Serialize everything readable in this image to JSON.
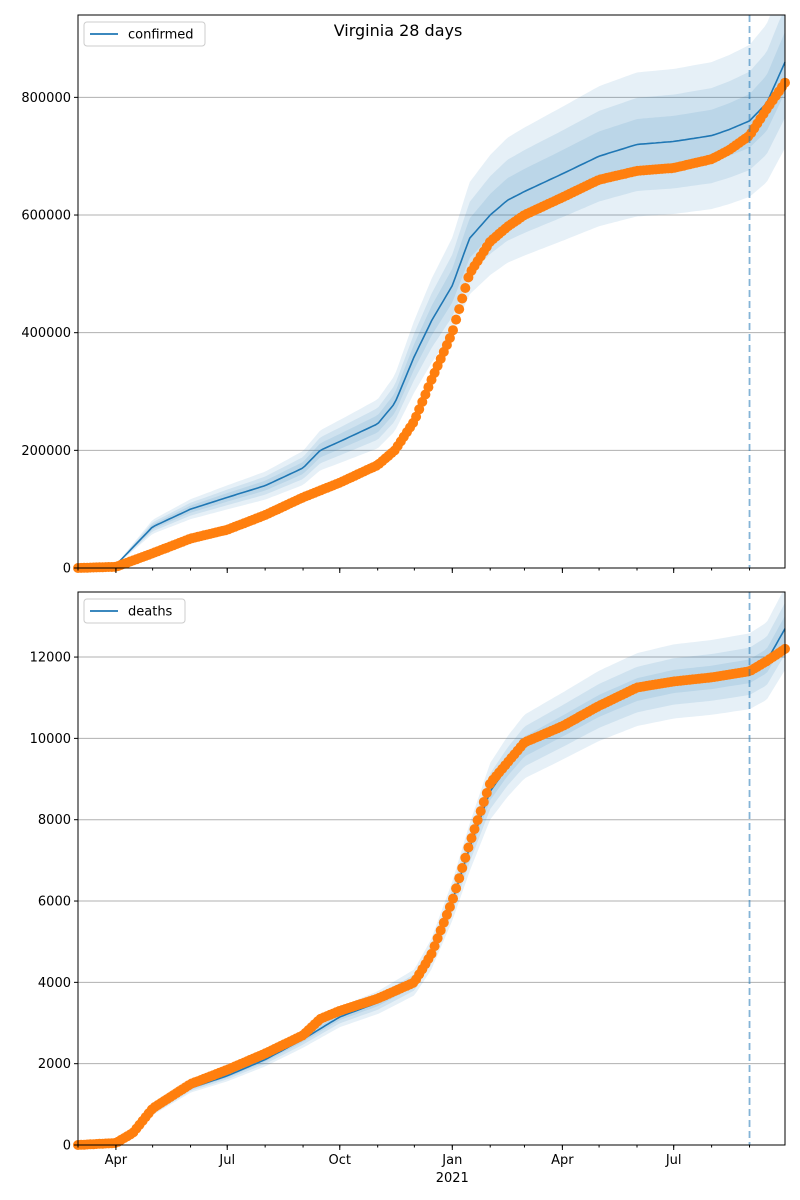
{
  "chart_data": {
    "title": "Virginia 28 days",
    "date_range": [
      "2020-03-01",
      "2021-09-30"
    ],
    "forecast_start": "2021-09-01",
    "year_label": "2021",
    "x_ticks": [
      {
        "date": "2020-04-01",
        "label": "Apr"
      },
      {
        "date": "2020-07-01",
        "label": "Jul"
      },
      {
        "date": "2020-10-01",
        "label": "Oct"
      },
      {
        "date": "2021-01-01",
        "label": "Jan"
      },
      {
        "date": "2021-04-01",
        "label": "Apr"
      },
      {
        "date": "2021-07-01",
        "label": "Jul"
      }
    ],
    "colors": {
      "model": "#1f77b4",
      "observed": "#ff7f0e",
      "band": "#1f77b4",
      "grid": "#b0b0b0",
      "forecast_line": "#1f77b4"
    },
    "panels": [
      {
        "type": "line",
        "series_name": "confirmed",
        "legend_position": "upper-left",
        "grid": true,
        "ylim": [
          0,
          940000
        ],
        "y_ticks": [
          {
            "value": 0,
            "label": "0"
          },
          {
            "value": 200000,
            "label": "200000"
          },
          {
            "value": 400000,
            "label": "400000"
          },
          {
            "value": 600000,
            "label": "600000"
          },
          {
            "value": 800000,
            "label": "800000"
          }
        ],
        "model": {
          "x": [
            "2020-03-01",
            "2020-04-01",
            "2020-05-01",
            "2020-06-01",
            "2020-07-01",
            "2020-08-01",
            "2020-09-01",
            "2020-09-15",
            "2020-10-01",
            "2020-11-01",
            "2020-11-15",
            "2020-12-01",
            "2020-12-15",
            "2021-01-01",
            "2021-01-15",
            "2021-02-01",
            "2021-02-15",
            "2021-03-01",
            "2021-04-01",
            "2021-05-01",
            "2021-06-01",
            "2021-07-01",
            "2021-08-01",
            "2021-08-15",
            "2021-09-01",
            "2021-09-15",
            "2021-09-30"
          ],
          "y": [
            0,
            5000,
            70000,
            100000,
            120000,
            140000,
            170000,
            200000,
            215000,
            245000,
            280000,
            360000,
            420000,
            480000,
            560000,
            600000,
            625000,
            640000,
            670000,
            700000,
            720000,
            725000,
            735000,
            745000,
            760000,
            790000,
            860000
          ]
        },
        "bands": [
          {
            "lo_factor": 0.83,
            "hi_factor": 1.17
          },
          {
            "lo_factor": 0.89,
            "hi_factor": 1.11
          },
          {
            "lo_factor": 0.94,
            "hi_factor": 1.06
          }
        ],
        "observed": {
          "x": [
            "2020-03-01",
            "2020-04-01",
            "2020-05-01",
            "2020-06-01",
            "2020-07-01",
            "2020-08-01",
            "2020-09-01",
            "2020-10-01",
            "2020-11-01",
            "2020-11-15",
            "2020-12-01",
            "2020-12-15",
            "2021-01-01",
            "2021-01-15",
            "2021-02-01",
            "2021-02-15",
            "2021-03-01",
            "2021-04-01",
            "2021-05-01",
            "2021-06-01",
            "2021-07-01",
            "2021-08-01",
            "2021-08-15",
            "2021-09-01",
            "2021-09-15",
            "2021-09-30"
          ],
          "y": [
            0,
            2000,
            25000,
            50000,
            65000,
            90000,
            120000,
            145000,
            175000,
            200000,
            250000,
            320000,
            400000,
            500000,
            555000,
            580000,
            600000,
            630000,
            660000,
            675000,
            680000,
            695000,
            710000,
            735000,
            780000,
            825000
          ]
        }
      },
      {
        "type": "line",
        "series_name": "deaths",
        "legend_position": "upper-left",
        "grid": true,
        "ylim": [
          0,
          13600
        ],
        "y_ticks": [
          {
            "value": 0,
            "label": "0"
          },
          {
            "value": 2000,
            "label": "2000"
          },
          {
            "value": 4000,
            "label": "4000"
          },
          {
            "value": 6000,
            "label": "6000"
          },
          {
            "value": 8000,
            "label": "8000"
          },
          {
            "value": 10000,
            "label": "10000"
          },
          {
            "value": 12000,
            "label": "12000"
          }
        ],
        "model": {
          "x": [
            "2020-03-01",
            "2020-04-01",
            "2020-04-15",
            "2020-05-01",
            "2020-06-01",
            "2020-07-01",
            "2020-08-01",
            "2020-09-01",
            "2020-10-01",
            "2020-11-01",
            "2020-12-01",
            "2020-12-15",
            "2021-01-01",
            "2021-01-15",
            "2021-02-01",
            "2021-02-15",
            "2021-03-01",
            "2021-04-01",
            "2021-05-01",
            "2021-06-01",
            "2021-07-01",
            "2021-08-01",
            "2021-09-01",
            "2021-09-15",
            "2021-09-30"
          ],
          "y": [
            0,
            50,
            300,
            800,
            1400,
            1700,
            2100,
            2600,
            3150,
            3500,
            4000,
            4700,
            6000,
            7300,
            8700,
            9300,
            9800,
            10300,
            10800,
            11200,
            11400,
            11500,
            11650,
            11900,
            12700
          ]
        },
        "bands": [
          {
            "lo_factor": 0.92,
            "hi_factor": 1.08
          },
          {
            "lo_factor": 0.95,
            "hi_factor": 1.05
          },
          {
            "lo_factor": 0.975,
            "hi_factor": 1.025
          }
        ],
        "observed": {
          "x": [
            "2020-03-01",
            "2020-04-01",
            "2020-04-15",
            "2020-05-01",
            "2020-06-01",
            "2020-07-01",
            "2020-08-01",
            "2020-09-01",
            "2020-09-15",
            "2020-10-01",
            "2020-11-01",
            "2020-12-01",
            "2020-12-15",
            "2021-01-01",
            "2021-01-15",
            "2021-02-01",
            "2021-02-15",
            "2021-03-01",
            "2021-04-01",
            "2021-05-01",
            "2021-06-01",
            "2021-07-01",
            "2021-08-01",
            "2021-09-01",
            "2021-09-15",
            "2021-09-30"
          ],
          "y": [
            0,
            50,
            300,
            900,
            1500,
            1850,
            2250,
            2700,
            3100,
            3300,
            3600,
            4000,
            4700,
            6000,
            7400,
            8900,
            9400,
            9900,
            10300,
            10800,
            11250,
            11400,
            11500,
            11650,
            11900,
            12200
          ]
        }
      }
    ]
  }
}
